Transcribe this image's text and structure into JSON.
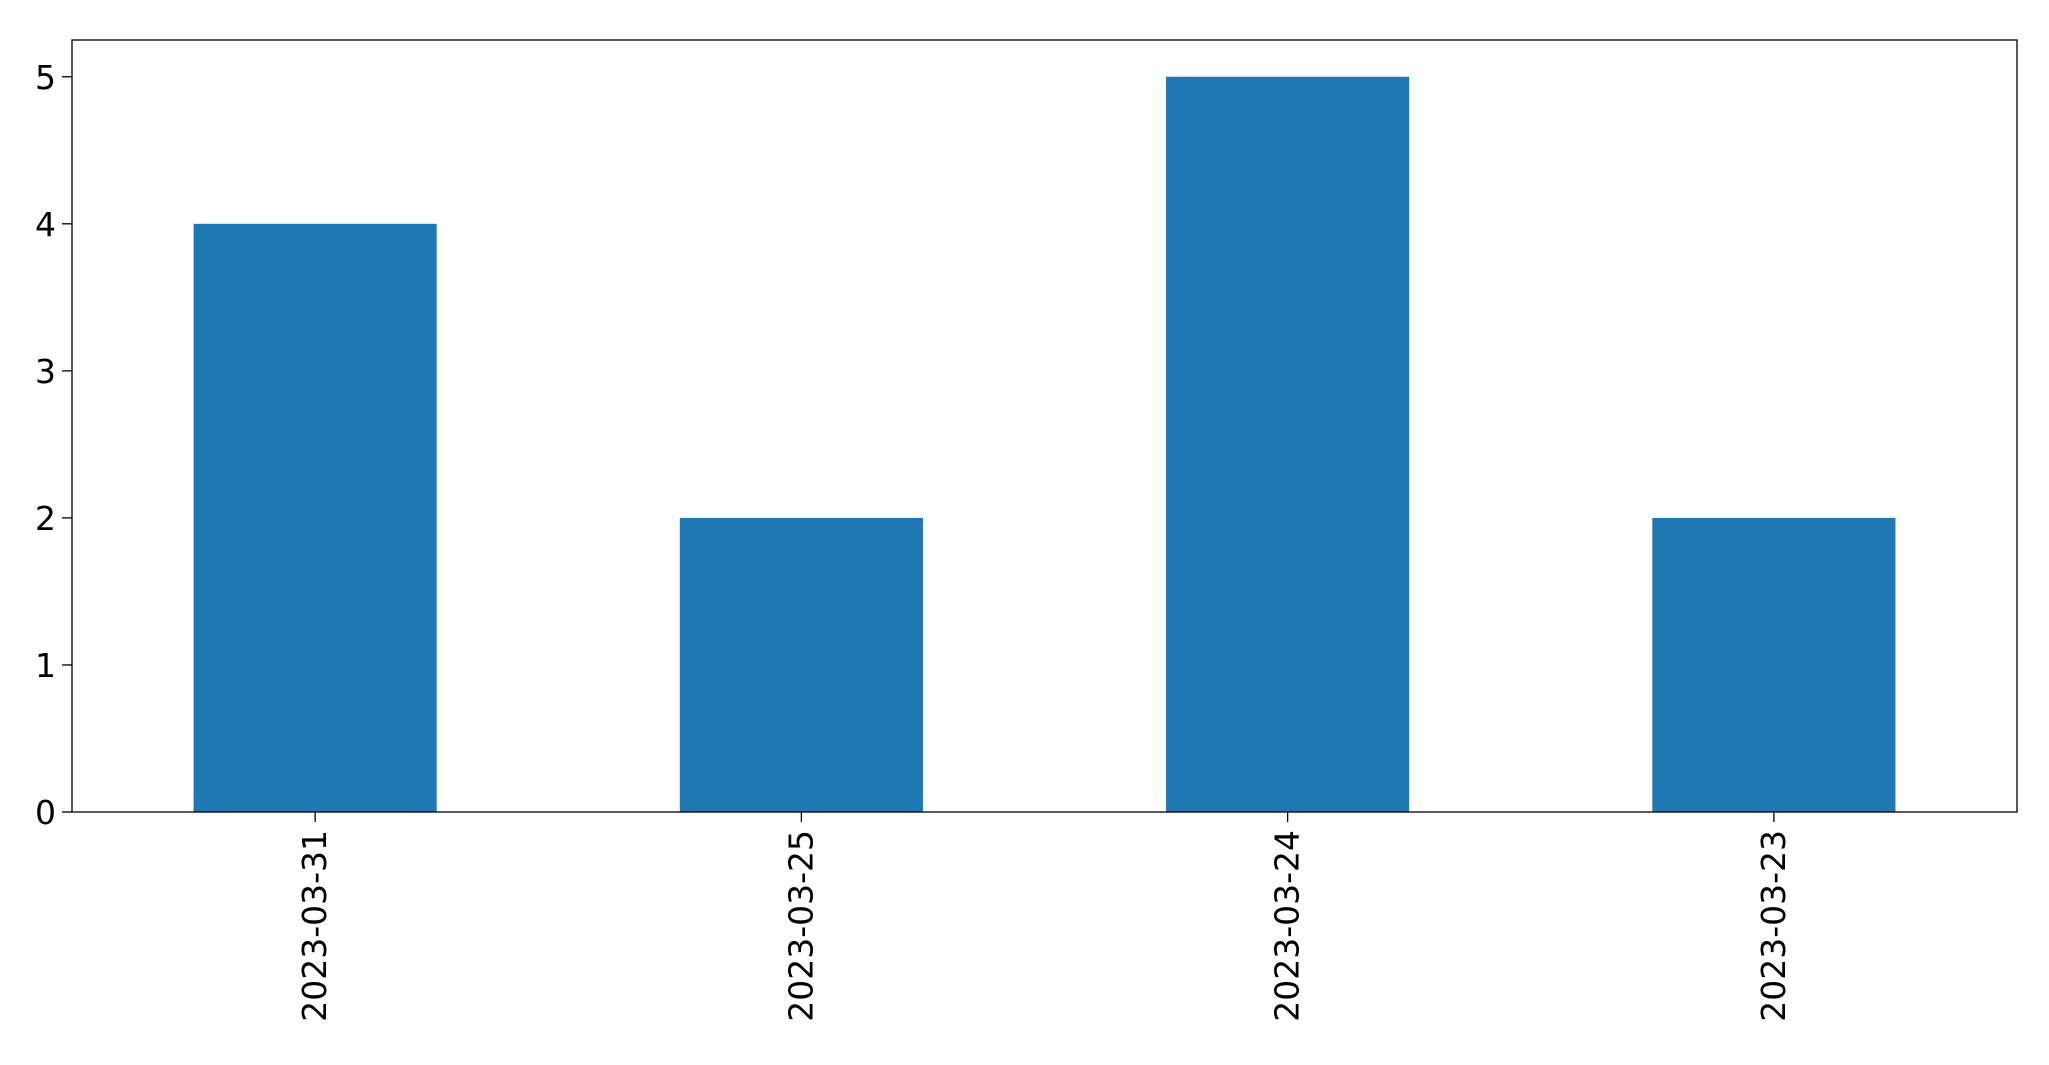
{
  "chart_data": {
    "type": "bar",
    "title": "",
    "xlabel": "",
    "ylabel": "",
    "categories": [
      "2023-03-31",
      "2023-03-25",
      "2023-03-24",
      "2023-03-23"
    ],
    "values": [
      4,
      2,
      5,
      2
    ],
    "yticks": [
      "0",
      "1",
      "2",
      "3",
      "4",
      "5"
    ],
    "ylim": [
      0,
      5.25
    ],
    "grid": false,
    "legend": "none",
    "bar_color": "#1f77b4"
  }
}
